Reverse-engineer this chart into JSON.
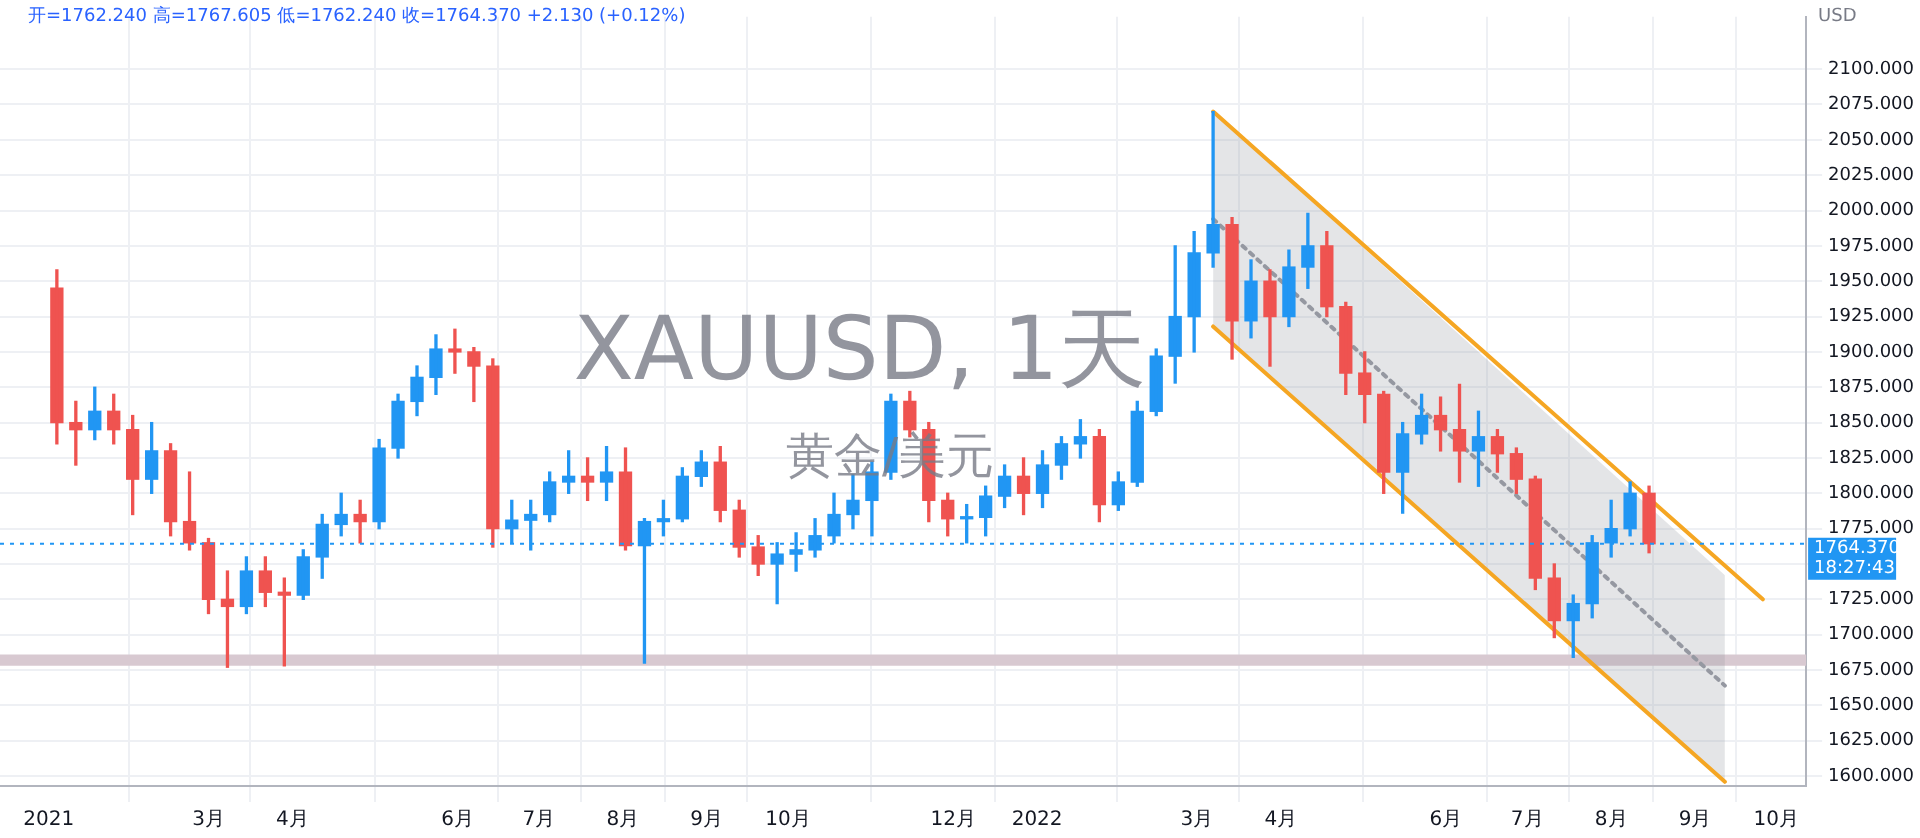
{
  "chart_data": {
    "type": "candlestick",
    "title": "XAUUSD, 1天",
    "subtitle": "黄金/美元",
    "ylabel": "USD",
    "annotations": [
      "开=1762.240 高=1767.605 低=1762.240 收=1764.370 +2.130 (+0.12%)",
      "18:27:43"
    ],
    "x": [
      "2021-01-04",
      "2021-01-11",
      "2021-01-18",
      "2021-01-25",
      "2021-02-01",
      "2021-02-08",
      "2021-02-15",
      "2021-02-22",
      "2021-03-01",
      "2021-03-08",
      "2021-03-15",
      "2021-03-22",
      "2021-03-29",
      "2021-04-05",
      "2021-04-12",
      "2021-04-19",
      "2021-04-26",
      "2021-05-03",
      "2021-05-10",
      "2021-05-17",
      "2021-05-24",
      "2021-05-31",
      "2021-06-07",
      "2021-06-14",
      "2021-06-21",
      "2021-06-28",
      "2021-07-05",
      "2021-07-12",
      "2021-07-19",
      "2021-07-26",
      "2021-08-02",
      "2021-08-09",
      "2021-08-16",
      "2021-08-23",
      "2021-08-30",
      "2021-09-06",
      "2021-09-13",
      "2021-09-20",
      "2021-09-27",
      "2021-10-04",
      "2021-10-11",
      "2021-10-18",
      "2021-10-25",
      "2021-11-01",
      "2021-11-08",
      "2021-11-15",
      "2021-11-22",
      "2021-11-29",
      "2021-12-06",
      "2021-12-13",
      "2021-12-20",
      "2021-12-27",
      "2022-01-03",
      "2022-01-10",
      "2022-01-17",
      "2022-01-24",
      "2022-01-31",
      "2022-02-07",
      "2022-02-14",
      "2022-02-21",
      "2022-02-28",
      "2022-03-07",
      "2022-03-14",
      "2022-03-21",
      "2022-03-28",
      "2022-04-04",
      "2022-04-11",
      "2022-04-18",
      "2022-04-25",
      "2022-05-02",
      "2022-05-09",
      "2022-05-16",
      "2022-05-23",
      "2022-05-30",
      "2022-06-06",
      "2022-06-13",
      "2022-06-20",
      "2022-06-27",
      "2022-07-04",
      "2022-07-11",
      "2022-07-18",
      "2022-07-25",
      "2022-08-01",
      "2022-08-08",
      "2022-08-15"
    ],
    "ohlc": [
      [
        1945,
        1958,
        1835,
        1850
      ],
      [
        1850,
        1865,
        1820,
        1845
      ],
      [
        1845,
        1875,
        1838,
        1858
      ],
      [
        1858,
        1870,
        1835,
        1845
      ],
      [
        1845,
        1855,
        1785,
        1810
      ],
      [
        1810,
        1850,
        1800,
        1830
      ],
      [
        1830,
        1835,
        1770,
        1780
      ],
      [
        1780,
        1815,
        1760,
        1765
      ],
      [
        1765,
        1768,
        1715,
        1725
      ],
      [
        1725,
        1745,
        1677,
        1720
      ],
      [
        1720,
        1755,
        1715,
        1745
      ],
      [
        1745,
        1755,
        1720,
        1730
      ],
      [
        1730,
        1740,
        1678,
        1728
      ],
      [
        1728,
        1760,
        1725,
        1755
      ],
      [
        1755,
        1785,
        1740,
        1778
      ],
      [
        1778,
        1800,
        1770,
        1785
      ],
      [
        1785,
        1795,
        1765,
        1780
      ],
      [
        1780,
        1838,
        1775,
        1832
      ],
      [
        1832,
        1870,
        1825,
        1865
      ],
      [
        1865,
        1890,
        1855,
        1882
      ],
      [
        1882,
        1912,
        1870,
        1902
      ],
      [
        1902,
        1916,
        1885,
        1900
      ],
      [
        1900,
        1903,
        1865,
        1890
      ],
      [
        1890,
        1895,
        1762,
        1775
      ],
      [
        1775,
        1795,
        1765,
        1781
      ],
      [
        1781,
        1795,
        1760,
        1785
      ],
      [
        1785,
        1815,
        1780,
        1808
      ],
      [
        1808,
        1830,
        1800,
        1812
      ],
      [
        1812,
        1825,
        1795,
        1808
      ],
      [
        1808,
        1833,
        1795,
        1815
      ],
      [
        1815,
        1832,
        1760,
        1763
      ],
      [
        1763,
        1782,
        1680,
        1780
      ],
      [
        1780,
        1795,
        1770,
        1782
      ],
      [
        1782,
        1818,
        1780,
        1812
      ],
      [
        1812,
        1830,
        1805,
        1822
      ],
      [
        1822,
        1833,
        1780,
        1788
      ],
      [
        1788,
        1795,
        1755,
        1762
      ],
      [
        1762,
        1770,
        1742,
        1750
      ],
      [
        1750,
        1765,
        1722,
        1757
      ],
      [
        1757,
        1772,
        1745,
        1760
      ],
      [
        1760,
        1782,
        1755,
        1770
      ],
      [
        1770,
        1800,
        1765,
        1785
      ],
      [
        1785,
        1813,
        1775,
        1795
      ],
      [
        1795,
        1822,
        1770,
        1815
      ],
      [
        1815,
        1870,
        1810,
        1865
      ],
      [
        1865,
        1872,
        1840,
        1845
      ],
      [
        1845,
        1850,
        1780,
        1795
      ],
      [
        1795,
        1800,
        1770,
        1782
      ],
      [
        1782,
        1792,
        1765,
        1783
      ],
      [
        1783,
        1805,
        1770,
        1798
      ],
      [
        1798,
        1820,
        1790,
        1812
      ],
      [
        1812,
        1825,
        1785,
        1800
      ],
      [
        1800,
        1830,
        1790,
        1820
      ],
      [
        1820,
        1840,
        1810,
        1835
      ],
      [
        1835,
        1852,
        1825,
        1840
      ],
      [
        1840,
        1845,
        1780,
        1792
      ],
      [
        1792,
        1815,
        1788,
        1808
      ],
      [
        1808,
        1865,
        1805,
        1858
      ],
      [
        1858,
        1902,
        1855,
        1897
      ],
      [
        1897,
        1975,
        1878,
        1925
      ],
      [
        1925,
        1985,
        1900,
        1970
      ],
      [
        1970,
        2070,
        1960,
        1990
      ],
      [
        1990,
        1995,
        1895,
        1922
      ],
      [
        1922,
        1965,
        1910,
        1950
      ],
      [
        1950,
        1958,
        1890,
        1925
      ],
      [
        1925,
        1972,
        1918,
        1960
      ],
      [
        1960,
        1998,
        1945,
        1975
      ],
      [
        1975,
        1985,
        1925,
        1932
      ],
      [
        1932,
        1935,
        1870,
        1885
      ],
      [
        1885,
        1900,
        1850,
        1870
      ],
      [
        1870,
        1872,
        1800,
        1815
      ],
      [
        1815,
        1850,
        1786,
        1842
      ],
      [
        1842,
        1870,
        1835,
        1855
      ],
      [
        1855,
        1868,
        1830,
        1845
      ],
      [
        1845,
        1877,
        1808,
        1830
      ],
      [
        1830,
        1858,
        1805,
        1840
      ],
      [
        1840,
        1845,
        1815,
        1828
      ],
      [
        1828,
        1832,
        1800,
        1810
      ],
      [
        1810,
        1812,
        1732,
        1740
      ],
      [
        1740,
        1750,
        1698,
        1710
      ],
      [
        1710,
        1728,
        1684,
        1722
      ],
      [
        1722,
        1770,
        1712,
        1765
      ],
      [
        1765,
        1795,
        1755,
        1775
      ],
      [
        1775,
        1808,
        1770,
        1800
      ],
      [
        1800,
        1805,
        1758,
        1764.37
      ]
    ],
    "colors": [
      "#ef5350",
      "#ef5350",
      "#2196f3",
      "#ef5350",
      "#ef5350",
      "#2196f3",
      "#ef5350",
      "#ef5350",
      "#ef5350",
      "#ef5350",
      "#2196f3",
      "#ef5350",
      "#ef5350",
      "#2196f3",
      "#2196f3",
      "#2196f3",
      "#ef5350",
      "#2196f3",
      "#2196f3",
      "#2196f3",
      "#2196f3",
      "#ef5350",
      "#ef5350",
      "#ef5350",
      "#2196f3",
      "#2196f3",
      "#2196f3",
      "#2196f3",
      "#ef5350",
      "#2196f3",
      "#ef5350",
      "#2196f3",
      "#2196f3",
      "#2196f3",
      "#2196f3",
      "#ef5350",
      "#ef5350",
      "#ef5350",
      "#2196f3",
      "#2196f3",
      "#2196f3",
      "#2196f3",
      "#2196f3",
      "#2196f3",
      "#2196f3",
      "#ef5350",
      "#ef5350",
      "#ef5350",
      "#2196f3",
      "#2196f3",
      "#2196f3",
      "#ef5350",
      "#2196f3",
      "#2196f3",
      "#2196f3",
      "#ef5350",
      "#2196f3",
      "#2196f3",
      "#2196f3",
      "#2196f3",
      "#2196f3",
      "#2196f3",
      "#ef5350",
      "#2196f3",
      "#ef5350",
      "#2196f3",
      "#2196f3",
      "#ef5350",
      "#ef5350",
      "#ef5350",
      "#ef5350",
      "#2196f3",
      "#2196f3",
      "#ef5350",
      "#ef5350",
      "#2196f3",
      "#ef5350",
      "#ef5350",
      "#ef5350",
      "#ef5350",
      "#2196f3",
      "#2196f3",
      "#2196f3",
      "#2196f3",
      "#ef5350"
    ],
    "series": [
      {
        "type": "line",
        "x": [
          "2022-03-07",
          "2022-09-26"
        ],
        "values": [
          2070,
          1725
        ],
        "color": "#f5a623"
      },
      {
        "type": "line",
        "x": [
          "2022-03-07",
          "2022-09-12"
        ],
        "values": [
          1918,
          1596
        ],
        "color": "#f5a623"
      },
      {
        "type": "line",
        "x": [
          "2022-03-07",
          "2022-09-12"
        ],
        "values": [
          1994,
          1664
        ],
        "lower": [
          1918,
          1596
        ],
        "upper": [
          2070,
          1742
        ],
        "color": "#9598a1",
        "line_style": "dotted"
      }
    ],
    "bands": [
      {
        "axis": "y",
        "from": 1678,
        "to": 1686,
        "color": "#d8c9d1"
      }
    ],
    "ref_lines": [
      {
        "axis": "y",
        "value": 1764.37,
        "label": "1764.370",
        "color": "#2196f3",
        "line_style": "dotted"
      }
    ],
    "xlim": [
      "2020-12-14",
      "2022-10-12"
    ],
    "xticks": [
      {
        "value": "2021-01-01",
        "label": "2021"
      },
      {
        "value": "2021-03-01",
        "label": "3月"
      },
      {
        "value": "2021-04-01",
        "label": "4月"
      },
      {
        "value": "2021-06-01",
        "label": "6月"
      },
      {
        "value": "2021-07-01",
        "label": "7月"
      },
      {
        "value": "2021-08-01",
        "label": "8月"
      },
      {
        "value": "2021-09-01",
        "label": "9月"
      },
      {
        "value": "2021-10-01",
        "label": "10月"
      },
      {
        "value": "2021-12-01",
        "label": "12月"
      },
      {
        "value": "2022-01-01",
        "label": "2022"
      },
      {
        "value": "2022-03-01",
        "label": "3月"
      },
      {
        "value": "2022-04-01",
        "label": "4月"
      },
      {
        "value": "2022-06-01",
        "label": "6月"
      },
      {
        "value": "2022-07-01",
        "label": "7月"
      },
      {
        "value": "2022-08-01",
        "label": "8月"
      },
      {
        "value": "2022-09-01",
        "label": "9月"
      },
      {
        "value": "2022-10-01",
        "label": "10月"
      }
    ],
    "ylim": [
      1593,
      2137
    ],
    "yticks": [
      {
        "value": 1600,
        "label": "1600.000"
      },
      {
        "value": 1625,
        "label": "1625.000"
      },
      {
        "value": 1650,
        "label": "1650.000"
      },
      {
        "value": 1675,
        "label": "1675.000"
      },
      {
        "value": 1700,
        "label": "1700.000"
      },
      {
        "value": 1725,
        "label": "1725.000"
      },
      {
        "value": 1750,
        "label": null
      },
      {
        "value": 1775,
        "label": "1775.000"
      },
      {
        "value": 1800,
        "label": "1800.000"
      },
      {
        "value": 1825,
        "label": "1825.000"
      },
      {
        "value": 1850,
        "label": "1850.000"
      },
      {
        "value": 1875,
        "label": "1875.000"
      },
      {
        "value": 1900,
        "label": "1900.000"
      },
      {
        "value": 1925,
        "label": "1925.000"
      },
      {
        "value": 1950,
        "label": "1950.000"
      },
      {
        "value": 1975,
        "label": "1975.000"
      },
      {
        "value": 2000,
        "label": "2000.000"
      },
      {
        "value": 2025,
        "label": "2025.000"
      },
      {
        "value": 2050,
        "label": "2050.000"
      },
      {
        "value": 2075,
        "label": "2075.000"
      },
      {
        "value": 2100,
        "label": "2100.000"
      }
    ],
    "grid": true,
    "legend": false
  }
}
